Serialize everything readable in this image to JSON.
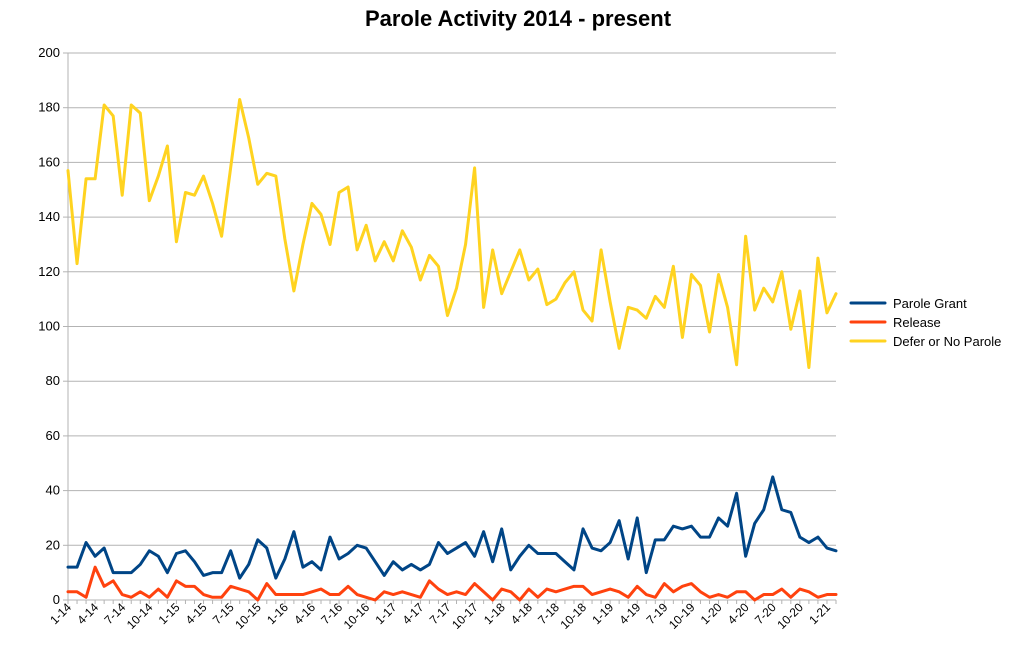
{
  "chart_data": {
    "type": "line",
    "title": "Parole Activity 2014 - present",
    "xlabel": "",
    "ylabel": "",
    "ylim": [
      0,
      200
    ],
    "yticks": [
      0,
      20,
      40,
      60,
      80,
      100,
      120,
      140,
      160,
      180,
      200
    ],
    "grid": true,
    "legend_position": "right",
    "x": [
      "1-14",
      "2-14",
      "3-14",
      "4-14",
      "5-14",
      "6-14",
      "7-14",
      "8-14",
      "9-14",
      "10-14",
      "11-14",
      "12-14",
      "1-15",
      "2-15",
      "3-15",
      "4-15",
      "5-15",
      "6-15",
      "7-15",
      "8-15",
      "9-15",
      "10-15",
      "11-15",
      "12-15",
      "1-16",
      "2-16",
      "3-16",
      "4-16",
      "5-16",
      "6-16",
      "7-16",
      "8-16",
      "9-16",
      "10-16",
      "11-16",
      "12-16",
      "1-17",
      "2-17",
      "3-17",
      "4-17",
      "5-17",
      "6-17",
      "7-17",
      "8-17",
      "9-17",
      "10-17",
      "11-17",
      "12-17",
      "1-18",
      "2-18",
      "3-18",
      "4-18",
      "5-18",
      "6-18",
      "7-18",
      "8-18",
      "9-18",
      "10-18",
      "11-18",
      "12-18",
      "1-19",
      "2-19",
      "3-19",
      "4-19",
      "5-19",
      "6-19",
      "7-19",
      "8-19",
      "9-19",
      "10-19",
      "11-19",
      "12-19",
      "1-20",
      "2-20",
      "3-20",
      "4-20",
      "5-20",
      "6-20",
      "7-20",
      "8-20",
      "9-20",
      "10-20",
      "11-20",
      "12-20",
      "1-21",
      "2-21"
    ],
    "xtick_labels": [
      "1-14",
      "4-14",
      "7-14",
      "10-14",
      "1-15",
      "4-15",
      "7-15",
      "10-15",
      "1-16",
      "4-16",
      "7-16",
      "10-16",
      "1-17",
      "4-17",
      "7-17",
      "10-17",
      "1-18",
      "4-18",
      "7-18",
      "10-18",
      "1-19",
      "4-19",
      "7-19",
      "10-19",
      "1-20",
      "4-20",
      "7-20",
      "10-20",
      "1-21"
    ],
    "series": [
      {
        "name": "Parole Grant",
        "color": "#004586",
        "values": [
          12,
          12,
          21,
          16,
          19,
          10,
          10,
          10,
          13,
          18,
          16,
          10,
          17,
          18,
          14,
          9,
          10,
          10,
          18,
          8,
          13,
          22,
          19,
          8,
          15,
          25,
          12,
          14,
          11,
          23,
          15,
          17,
          20,
          19,
          14,
          9,
          14,
          11,
          13,
          11,
          13,
          21,
          17,
          19,
          21,
          16,
          25,
          14,
          26,
          11,
          16,
          20,
          17,
          17,
          17,
          14,
          11,
          26,
          19,
          18,
          21,
          29,
          15,
          30,
          10,
          22,
          22,
          27,
          26,
          27,
          23,
          23,
          30,
          27,
          39,
          16,
          28,
          33,
          45,
          33,
          32,
          23,
          21,
          23,
          19,
          18
        ]
      },
      {
        "name": "Release",
        "color": "#ff420e",
        "values": [
          3,
          3,
          1,
          12,
          5,
          7,
          2,
          1,
          3,
          1,
          4,
          1,
          7,
          5,
          5,
          2,
          1,
          1,
          5,
          4,
          3,
          0,
          6,
          2,
          2,
          2,
          2,
          3,
          4,
          2,
          2,
          5,
          2,
          1,
          0,
          3,
          2,
          3,
          2,
          1,
          7,
          4,
          2,
          3,
          2,
          6,
          3,
          0,
          4,
          3,
          0,
          4,
          1,
          4,
          3,
          4,
          5,
          5,
          2,
          3,
          4,
          3,
          1,
          5,
          2,
          1,
          6,
          3,
          5,
          6,
          3,
          1,
          2,
          1,
          3,
          3,
          0,
          2,
          2,
          4,
          1,
          4,
          3,
          1,
          2,
          2
        ]
      },
      {
        "name": "Defer or No Parole",
        "color": "#ffd320",
        "values": [
          157,
          123,
          154,
          154,
          181,
          177,
          148,
          181,
          178,
          146,
          155,
          166,
          131,
          149,
          148,
          155,
          145,
          133,
          158,
          183,
          169,
          152,
          156,
          155,
          132,
          113,
          130,
          145,
          141,
          130,
          149,
          151,
          128,
          137,
          124,
          131,
          124,
          135,
          129,
          117,
          126,
          122,
          104,
          114,
          130,
          158,
          107,
          128,
          112,
          120,
          128,
          117,
          121,
          108,
          110,
          116,
          120,
          106,
          102,
          128,
          109,
          92,
          107,
          106,
          103,
          111,
          107,
          122,
          96,
          119,
          115,
          98,
          119,
          107,
          86,
          133,
          106,
          114,
          109,
          120,
          99,
          113,
          85,
          125,
          105,
          112
        ]
      }
    ]
  }
}
